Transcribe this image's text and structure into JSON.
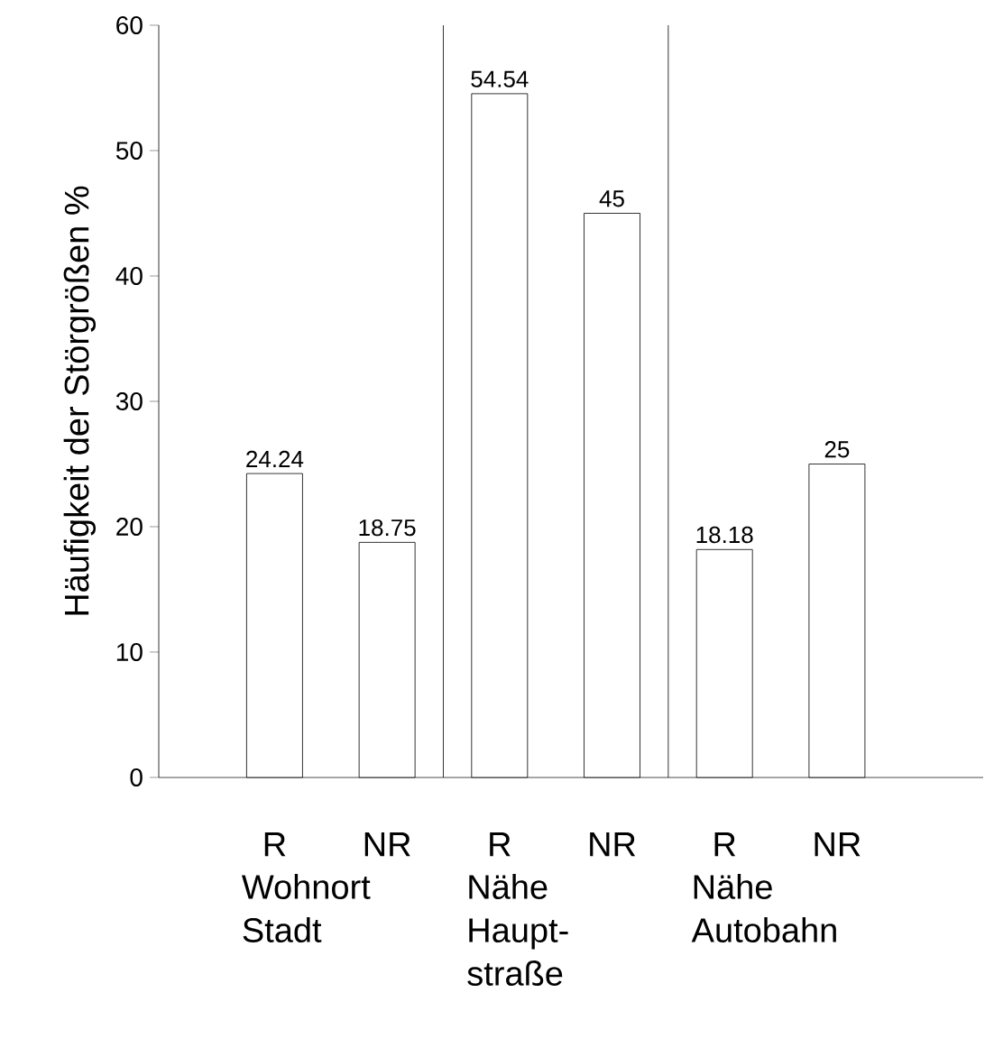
{
  "chart_data": {
    "type": "bar",
    "ylabel": "Häufigkeit der Störgrößen %",
    "categories": [
      "R",
      "NR",
      "R",
      "NR",
      "R",
      "NR"
    ],
    "values": [
      24.24,
      18.75,
      54.54,
      45,
      18.18,
      25
    ],
    "color": "#ffffff",
    "data_labels": true,
    "ylim": [
      0,
      60
    ],
    "yticks": [
      0,
      10,
      20,
      30,
      40,
      50,
      60
    ],
    "annotations": [
      "Wohnort Stadt",
      "Nähe Haupt-straße",
      "Nähe Autobahn"
    ],
    "grid": false
  }
}
